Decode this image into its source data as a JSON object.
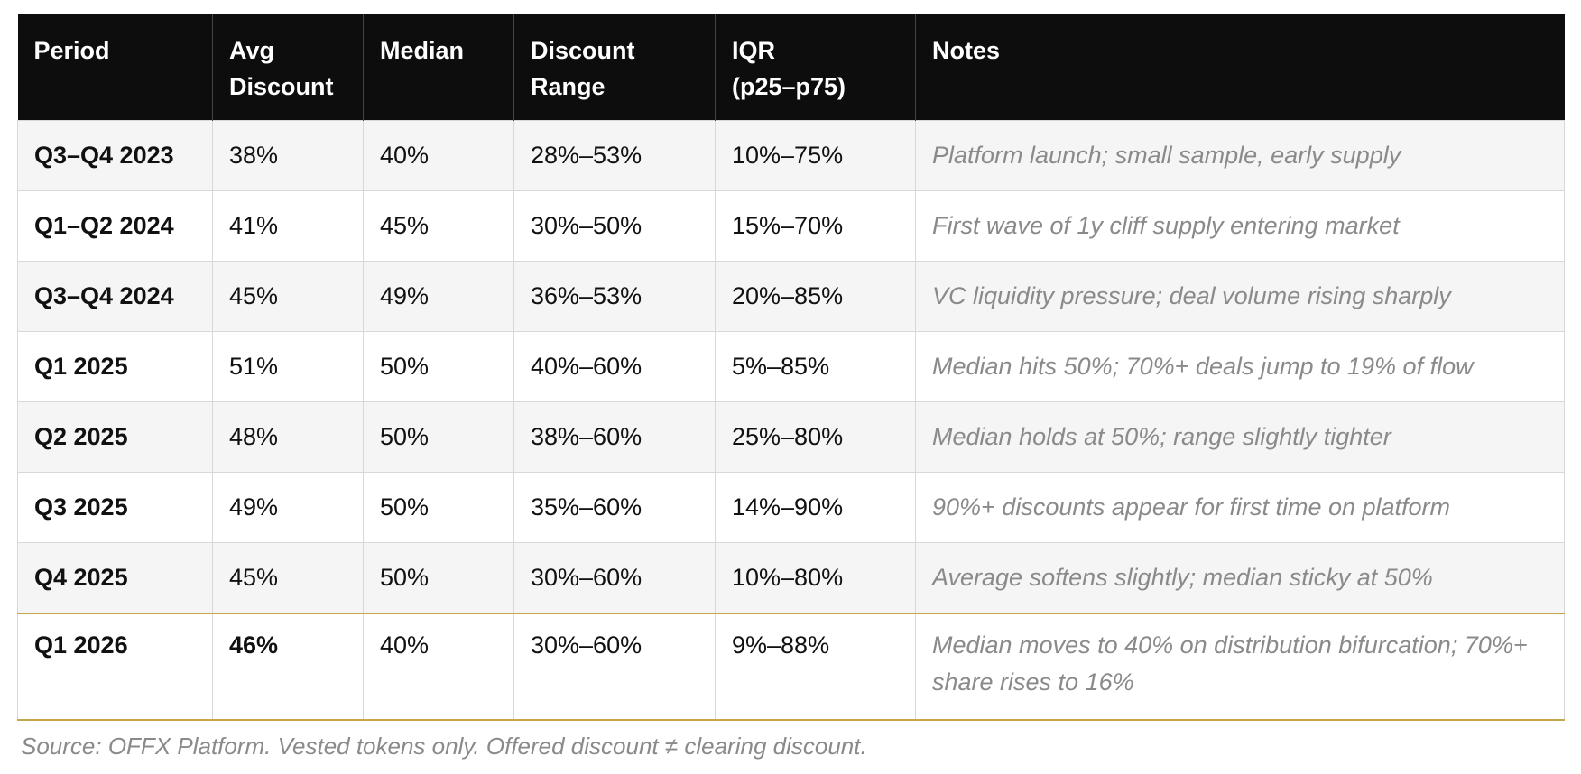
{
  "table": {
    "header": [
      [
        "Period"
      ],
      [
        "Avg",
        "Discount"
      ],
      [
        "Median"
      ],
      [
        "Discount",
        "Range"
      ],
      [
        "IQR",
        "(p25–p75)"
      ],
      [
        "Notes"
      ]
    ],
    "rows": [
      [
        "Q3–Q4 2023",
        "38%",
        "40%",
        "28%–53%",
        "10%–75%",
        "Platform launch; small sample, early supply"
      ],
      [
        "Q1–Q2 2024",
        "41%",
        "45%",
        "30%–50%",
        "15%–70%",
        "First wave of 1y cliff supply entering market"
      ],
      [
        "Q3–Q4 2024",
        "45%",
        "49%",
        "36%–53%",
        "20%–85%",
        "VC liquidity pressure; deal volume rising sharply"
      ],
      [
        "Q1 2025",
        "51%",
        "50%",
        "40%–60%",
        "5%–85%",
        "Median hits 50%; 70%+ deals jump to 19% of flow"
      ],
      [
        "Q2 2025",
        "48%",
        "50%",
        "38%–60%",
        "25%–80%",
        "Median holds at 50%; range slightly tighter"
      ],
      [
        "Q3 2025",
        "49%",
        "50%",
        "35%–60%",
        "14%–90%",
        "90%+ discounts appear for first time on platform"
      ],
      [
        "Q4 2025",
        "45%",
        "50%",
        "30%–60%",
        "10%–80%",
        "Average softens slightly; median sticky at 50%"
      ],
      [
        "Q1 2026",
        "46%",
        "40%",
        "30%–60%",
        "9%–88%",
        "Median moves to 40% on distribution bifurcation; 70%+ share rises to 16%"
      ]
    ],
    "source": "Source: OFFX Platform. Vested tokens only. Offered discount ≠ clearing discount."
  }
}
